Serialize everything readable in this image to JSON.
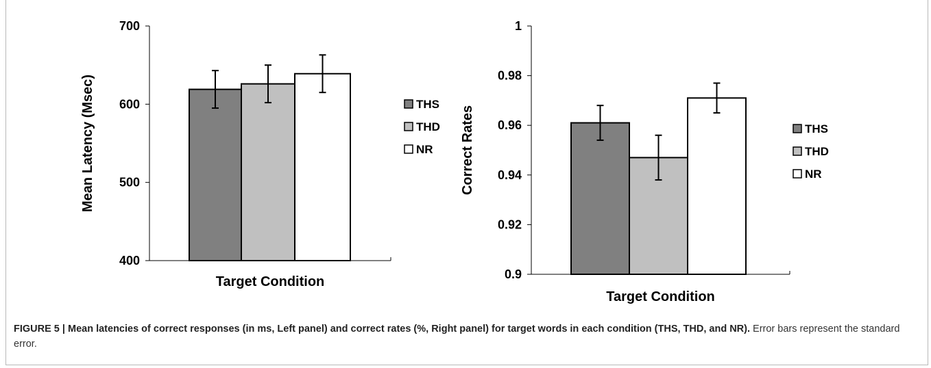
{
  "chart_data": [
    {
      "type": "bar",
      "categories": [
        "THS",
        "THD",
        "NR"
      ],
      "values": [
        619,
        626,
        639
      ],
      "errors": [
        24,
        24,
        24
      ],
      "ylim": [
        400,
        700
      ],
      "yticks": [
        "400",
        "500",
        "600",
        "700"
      ],
      "xlabel": "Target Condition",
      "ylabel": "Mean Latency (Msec)",
      "colors": [
        "#808080",
        "#c0c0c0",
        "#ffffff"
      ],
      "legend": [
        "THS",
        "THD",
        "NR"
      ],
      "legend_position": "right"
    },
    {
      "type": "bar",
      "categories": [
        "THS",
        "THD",
        "NR"
      ],
      "values": [
        0.961,
        0.947,
        0.971
      ],
      "errors": [
        0.007,
        0.009,
        0.006
      ],
      "ylim": [
        0.9,
        1.0
      ],
      "yticks": [
        "0.9",
        "0.92",
        "0.94",
        "0.96",
        "0.98",
        "1"
      ],
      "xlabel": "Target Condition",
      "ylabel": "Correct Rates",
      "colors": [
        "#808080",
        "#c0c0c0",
        "#ffffff"
      ],
      "legend": [
        "THS",
        "THD",
        "NR"
      ],
      "legend_position": "right"
    }
  ],
  "caption": {
    "lead": "FIGURE 5 | Mean latencies of correct responses (in ms, Left panel) and correct rates (%, Right panel) for target words in each condition (THS, THD, and NR).",
    "rest": " Error bars represent the standard error."
  }
}
